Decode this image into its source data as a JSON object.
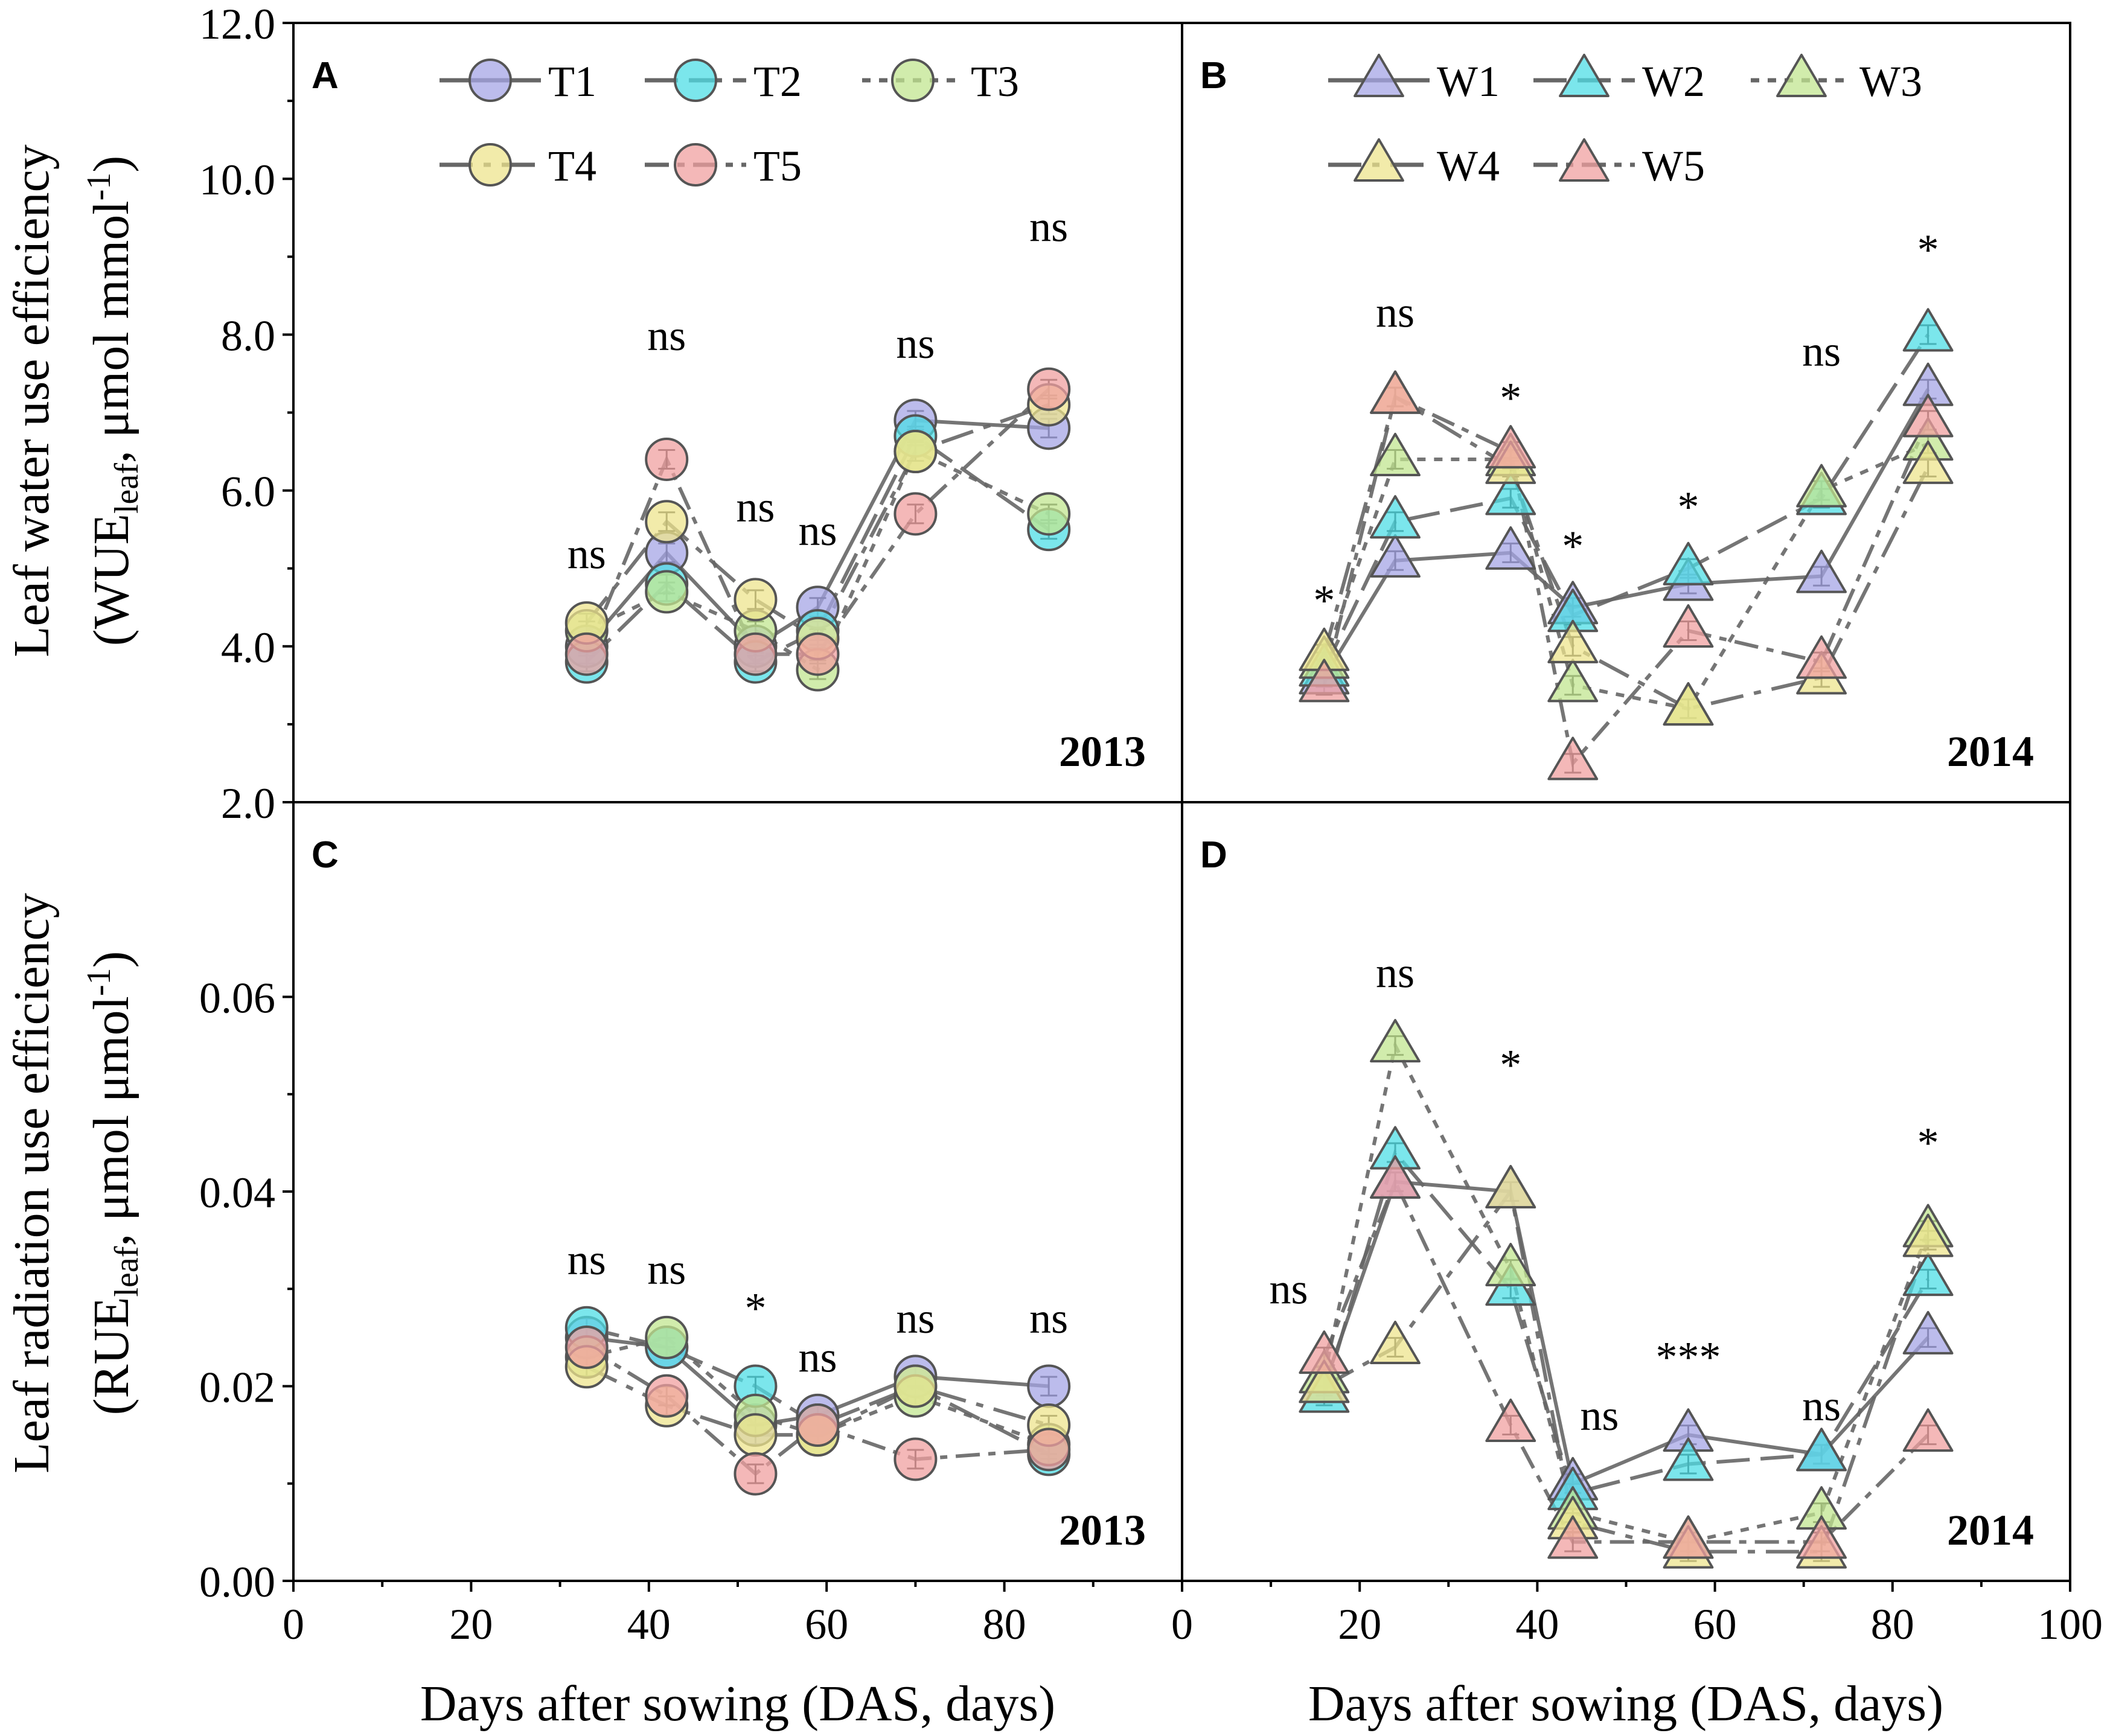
{
  "y_label_top": {
    "line1": "Leaf water use efficiency",
    "line2_pre": "(WUE",
    "line2_sub": "leaf",
    "line2_post": ", μmol mmol",
    "line2_sup": "-1",
    "line2_end": ")"
  },
  "y_label_bottom": {
    "line1": "Leaf radiation use efficiency",
    "line2_pre": "(RUE",
    "line2_sub": "leaf",
    "line2_post": ", μmol μmol",
    "line2_sup": "-1",
    "line2_end": ")"
  },
  "x_label": "Days after sowing (DAS, days)",
  "colors": {
    "c1": "#a6a6e6",
    "c2": "#4fdde6",
    "c3": "#c2e690",
    "c4": "#ede48e",
    "c5": "#f0a0a0",
    "line": "#666666",
    "axis": "#000000"
  },
  "chart_data": [
    {
      "id": "A",
      "type": "line",
      "marker": "circle",
      "panel_label": "A",
      "year": "2013",
      "xlim": [
        0,
        100
      ],
      "ylim": [
        2.0,
        12.0
      ],
      "y_ticks": [
        "2.0",
        "4.0",
        "6.0",
        "8.0",
        "10.0",
        "12.0"
      ],
      "x_ticks": [
        "0",
        "20",
        "40",
        "60",
        "80"
      ],
      "x": [
        33,
        42,
        52,
        59,
        70,
        85
      ],
      "series": [
        {
          "name": "T1",
          "values": [
            4.0,
            5.2,
            4.0,
            4.5,
            6.9,
            6.8
          ]
        },
        {
          "name": "T2",
          "values": [
            3.8,
            4.8,
            3.8,
            4.2,
            6.7,
            5.5
          ]
        },
        {
          "name": "T3",
          "values": [
            4.2,
            4.7,
            4.2,
            3.7,
            6.5,
            5.7
          ]
        },
        {
          "name": "T4",
          "values": [
            4.3,
            5.6,
            4.6,
            4.1,
            6.5,
            7.1
          ]
        },
        {
          "name": "T5",
          "values": [
            3.9,
            6.4,
            3.9,
            3.9,
            5.7,
            7.3
          ]
        }
      ],
      "sig": [
        {
          "x": 33,
          "y": 5.0,
          "label": "ns"
        },
        {
          "x": 42,
          "y": 7.8,
          "label": "ns"
        },
        {
          "x": 52,
          "y": 5.6,
          "label": "ns"
        },
        {
          "x": 59,
          "y": 5.3,
          "label": "ns"
        },
        {
          "x": 70,
          "y": 7.7,
          "label": "ns"
        },
        {
          "x": 85,
          "y": 9.2,
          "label": "ns"
        }
      ]
    },
    {
      "id": "B",
      "type": "line",
      "marker": "triangle",
      "panel_label": "B",
      "year": "2014",
      "xlim": [
        0,
        100
      ],
      "ylim": [
        2.0,
        12.0
      ],
      "x_ticks": [
        "0",
        "20",
        "40",
        "60",
        "80",
        "100"
      ],
      "x": [
        16,
        24,
        37,
        44,
        57,
        72,
        84
      ],
      "series": [
        {
          "name": "W1",
          "values": [
            3.6,
            5.1,
            5.2,
            4.5,
            4.8,
            4.9,
            7.3
          ]
        },
        {
          "name": "W2",
          "values": [
            3.7,
            5.6,
            5.9,
            4.4,
            5.0,
            5.9,
            8.0
          ]
        },
        {
          "name": "W3",
          "values": [
            3.8,
            6.4,
            6.4,
            3.5,
            3.2,
            6.0,
            6.6
          ]
        },
        {
          "name": "W4",
          "values": [
            3.9,
            7.2,
            6.3,
            4.0,
            3.2,
            3.6,
            6.3
          ]
        },
        {
          "name": "W5",
          "values": [
            3.5,
            7.2,
            6.5,
            2.5,
            4.2,
            3.8,
            6.9
          ]
        }
      ],
      "sig": [
        {
          "x": 16,
          "y": 4.4,
          "label": "*"
        },
        {
          "x": 24,
          "y": 8.1,
          "label": "ns"
        },
        {
          "x": 37,
          "y": 7.0,
          "label": "*"
        },
        {
          "x": 44,
          "y": 5.1,
          "label": "*"
        },
        {
          "x": 57,
          "y": 5.6,
          "label": "*"
        },
        {
          "x": 72,
          "y": 7.6,
          "label": "ns"
        },
        {
          "x": 84,
          "y": 8.9,
          "label": "*"
        }
      ]
    },
    {
      "id": "C",
      "type": "line",
      "marker": "circle",
      "panel_label": "C",
      "year": "2013",
      "xlim": [
        0,
        100
      ],
      "ylim": [
        0.0,
        0.08
      ],
      "y_ticks": [
        "0.00",
        "0.02",
        "0.04",
        "0.06"
      ],
      "x_ticks": [
        "0",
        "20",
        "40",
        "60",
        "80"
      ],
      "x": [
        33,
        42,
        52,
        59,
        70,
        85
      ],
      "series": [
        {
          "name": "T1",
          "values": [
            0.025,
            0.024,
            0.016,
            0.017,
            0.021,
            0.02
          ]
        },
        {
          "name": "T2",
          "values": [
            0.026,
            0.024,
            0.02,
            0.016,
            0.02,
            0.013
          ]
        },
        {
          "name": "T3",
          "values": [
            0.023,
            0.025,
            0.017,
            0.015,
            0.019,
            0.014
          ]
        },
        {
          "name": "T4",
          "values": [
            0.022,
            0.018,
            0.015,
            0.015,
            0.02,
            0.016
          ]
        },
        {
          "name": "T5",
          "values": [
            0.024,
            0.019,
            0.011,
            0.016,
            0.0125,
            0.0135
          ]
        }
      ],
      "sig": [
        {
          "x": 33,
          "y": 0.0315,
          "label": "ns"
        },
        {
          "x": 42,
          "y": 0.0305,
          "label": "ns"
        },
        {
          "x": 52,
          "y": 0.0265,
          "label": "*"
        },
        {
          "x": 59,
          "y": 0.0215,
          "label": "ns"
        },
        {
          "x": 70,
          "y": 0.0255,
          "label": "ns"
        },
        {
          "x": 85,
          "y": 0.0255,
          "label": "ns"
        }
      ]
    },
    {
      "id": "D",
      "type": "line",
      "marker": "triangle",
      "panel_label": "D",
      "year": "2014",
      "xlim": [
        0,
        100
      ],
      "ylim": [
        0.0,
        0.08
      ],
      "x_ticks": [
        "0",
        "20",
        "40",
        "60",
        "80",
        "100"
      ],
      "x": [
        16,
        24,
        37,
        44,
        57,
        72,
        84
      ],
      "series": [
        {
          "name": "W1",
          "values": [
            0.02,
            0.041,
            0.04,
            0.01,
            0.015,
            0.013,
            0.025
          ]
        },
        {
          "name": "W2",
          "values": [
            0.019,
            0.044,
            0.03,
            0.009,
            0.012,
            0.013,
            0.031
          ]
        },
        {
          "name": "W3",
          "values": [
            0.021,
            0.055,
            0.032,
            0.007,
            0.004,
            0.007,
            0.036
          ]
        },
        {
          "name": "W4",
          "values": [
            0.02,
            0.024,
            0.04,
            0.006,
            0.003,
            0.003,
            0.035
          ]
        },
        {
          "name": "W5",
          "values": [
            0.023,
            0.041,
            0.016,
            0.004,
            0.004,
            0.004,
            0.015
          ]
        }
      ],
      "sig": [
        {
          "x": 12,
          "y": 0.0285,
          "label": "ns"
        },
        {
          "x": 24,
          "y": 0.061,
          "label": "ns"
        },
        {
          "x": 37,
          "y": 0.0515,
          "label": "*"
        },
        {
          "x": 47,
          "y": 0.0155,
          "label": "ns"
        },
        {
          "x": 57,
          "y": 0.0215,
          "label": "***"
        },
        {
          "x": 72,
          "y": 0.0165,
          "label": "ns"
        },
        {
          "x": 84,
          "y": 0.0435,
          "label": "*"
        }
      ]
    }
  ]
}
